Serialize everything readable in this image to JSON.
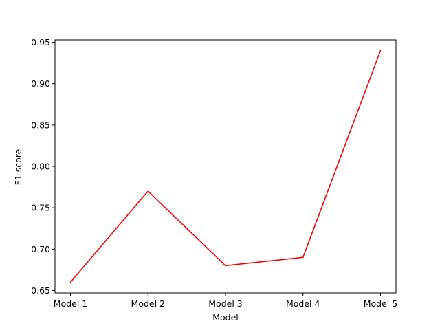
{
  "chart_data": {
    "type": "line",
    "categories": [
      "Model 1",
      "Model 2",
      "Model 3",
      "Model 4",
      "Model 5"
    ],
    "series": [
      {
        "values": [
          0.66,
          0.77,
          0.68,
          0.69,
          0.94
        ],
        "color": "#ff0000"
      }
    ],
    "xlabel": "Model",
    "ylabel": "F1 score",
    "ylim": [
      0.647,
      0.953
    ],
    "yticks": [
      0.65,
      0.7,
      0.75,
      0.8,
      0.85,
      0.9,
      0.95
    ],
    "ytick_labels": [
      "0.65",
      "0.70",
      "0.75",
      "0.80",
      "0.85",
      "0.90",
      "0.95"
    ],
    "grid": false,
    "legend": "none"
  }
}
